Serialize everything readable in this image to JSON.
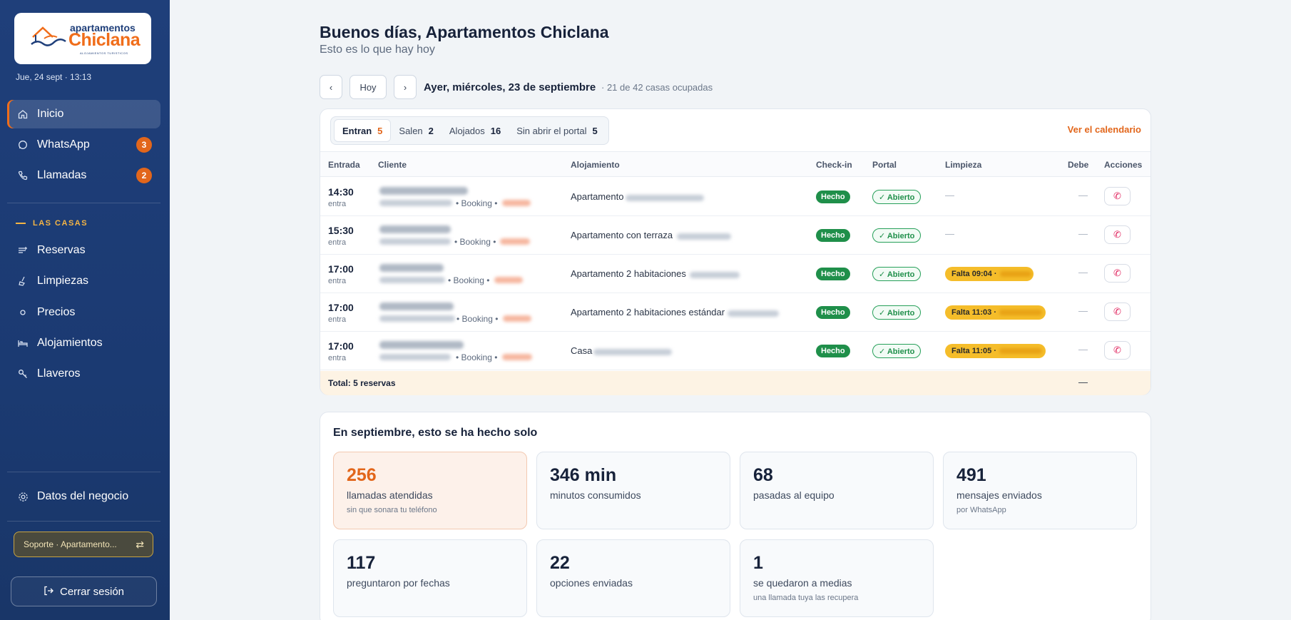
{
  "sidebar": {
    "logo": {
      "line1": "apartamentos",
      "line2": "Chiclana",
      "line3": "ALOJAMIENTOS TURISTICOS"
    },
    "datetime": "Jue, 24 sept · 13:13",
    "nav": [
      {
        "label": "Inicio",
        "icon": "home-icon"
      },
      {
        "label": "WhatsApp",
        "icon": "whatsapp-icon",
        "badge": "3"
      },
      {
        "label": "Llamadas",
        "icon": "phone-icon",
        "badge": "2"
      }
    ],
    "section_label": "LAS CASAS",
    "casas": [
      {
        "label": "Reservas",
        "icon": "list-icon"
      },
      {
        "label": "Limpiezas",
        "icon": "broom-icon"
      },
      {
        "label": "Precios",
        "icon": "circle-icon"
      },
      {
        "label": "Alojamientos",
        "icon": "bed-icon"
      },
      {
        "label": "Llaveros",
        "icon": "key-icon"
      }
    ],
    "business_label": "Datos del negocio",
    "support_label": "Soporte · Apartamento...",
    "logout_label": "Cerrar sesión"
  },
  "header": {
    "title": "Buenos días, Apartamentos Chiclana",
    "subtitle": "Esto es lo que hay hoy"
  },
  "date_nav": {
    "prev": "‹",
    "today": "Hoy",
    "next": "›",
    "date": "Ayer, miércoles, 23 de septiembre",
    "occupancy": "· 21 de 42 casas ocupadas"
  },
  "tabs": [
    {
      "label": "Entran",
      "count": "5"
    },
    {
      "label": "Salen",
      "count": "2"
    },
    {
      "label": "Alojados",
      "count": "16"
    },
    {
      "label": "Sin abrir el portal",
      "count": "5"
    }
  ],
  "calendar_link": "Ver el calendario",
  "table": {
    "headers": [
      "Entrada",
      "Cliente",
      "Alojamiento",
      "Check-in",
      "Portal",
      "Limpieza",
      "Debe",
      "Acciones"
    ],
    "rows": [
      {
        "time": "14:30",
        "kind": "entra",
        "source": "• Booking •",
        "aloj": "Apartamento",
        "checkin": "Hecho",
        "portal": "✓ Abierto",
        "limpieza": "—",
        "debe": "—"
      },
      {
        "time": "15:30",
        "kind": "entra",
        "source": "• Booking •",
        "aloj": "Apartamento con terraza",
        "checkin": "Hecho",
        "portal": "✓ Abierto",
        "limpieza": "—",
        "debe": "—"
      },
      {
        "time": "17:00",
        "kind": "entra",
        "source": "• Booking •",
        "aloj": "Apartamento 2 habitaciones",
        "checkin": "Hecho",
        "portal": "✓ Abierto",
        "limpieza": "Falta 09:04 ·",
        "debe": "—"
      },
      {
        "time": "17:00",
        "kind": "entra",
        "source": "• Booking •",
        "aloj": "Apartamento 2 habitaciones estándar",
        "checkin": "Hecho",
        "portal": "✓ Abierto",
        "limpieza": "Falta 11:03 ·",
        "debe": "—"
      },
      {
        "time": "17:00",
        "kind": "entra",
        "source": "• Booking •",
        "aloj": "Casa",
        "checkin": "Hecho",
        "portal": "✓ Abierto",
        "limpieza": "Falta 11:05 ·",
        "debe": "—"
      }
    ],
    "total_label": "Total: 5 reservas",
    "total_debe": "—"
  },
  "stats": {
    "title": "En septiembre, esto se ha hecho solo",
    "items": [
      {
        "value": "256",
        "label": "llamadas atendidas",
        "sub": "sin que sonara tu teléfono"
      },
      {
        "value": "346 min",
        "label": "minutos consumidos",
        "sub": ""
      },
      {
        "value": "68",
        "label": "pasadas al equipo",
        "sub": ""
      },
      {
        "value": "491",
        "label": "mensajes enviados",
        "sub": "por WhatsApp"
      },
      {
        "value": "117",
        "label": "preguntaron por fechas",
        "sub": ""
      },
      {
        "value": "22",
        "label": "opciones enviadas",
        "sub": ""
      },
      {
        "value": "1",
        "label": "se quedaron a medias",
        "sub": "una llamada tuya las recupera"
      }
    ]
  },
  "colors": {
    "sidebar": "#1f3f7a",
    "accent": "#e2661b",
    "success": "#1f8f4a",
    "warning": "#f5bd2a"
  }
}
